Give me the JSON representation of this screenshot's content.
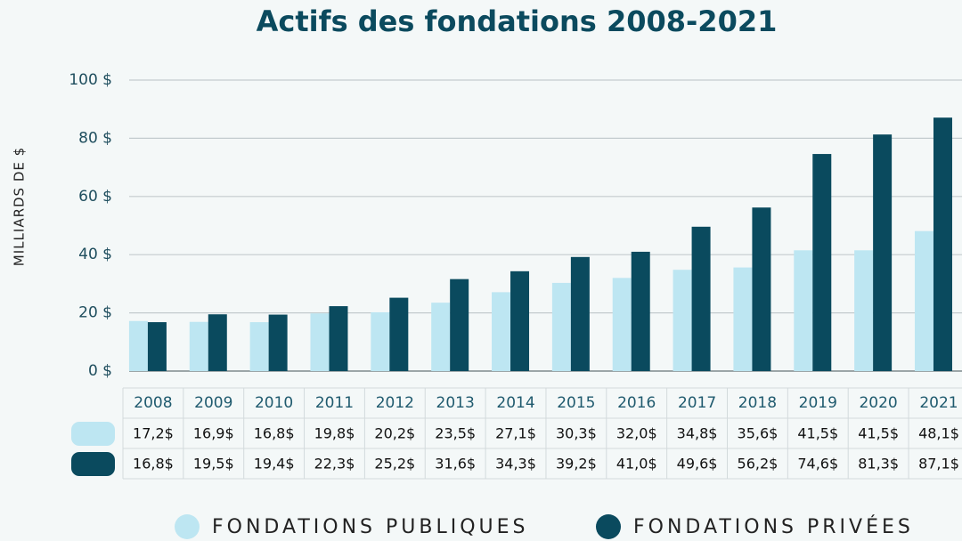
{
  "chart_data": {
    "type": "bar",
    "title": "Actifs des fondations 2008-2021",
    "y_label": "MILLIARDS DE $",
    "categories": [
      "2008",
      "2009",
      "2010",
      "2011",
      "2012",
      "2013",
      "2014",
      "2015",
      "2016",
      "2017",
      "2018",
      "2019",
      "2020",
      "2021"
    ],
    "series": [
      {
        "name": "FONDATIONS PUBLIQUES",
        "color": "#bde6f2",
        "values": [
          17.2,
          16.9,
          16.8,
          19.8,
          20.2,
          23.5,
          27.1,
          30.3,
          32.0,
          34.8,
          35.6,
          41.5,
          41.5,
          48.1
        ],
        "value_labels": [
          "17,2$",
          "16,9$",
          "16,8$",
          "19,8$",
          "20,2$",
          "23,5$",
          "27,1$",
          "30,3$",
          "32,0$",
          "34,8$",
          "35,6$",
          "41,5$",
          "41,5$",
          "48,1$"
        ]
      },
      {
        "name": "FONDATIONS PRIVÉES",
        "color": "#0a4a5e",
        "values": [
          16.8,
          19.5,
          19.4,
          22.3,
          25.2,
          31.6,
          34.3,
          39.2,
          41.0,
          49.6,
          56.2,
          74.6,
          81.3,
          87.1
        ],
        "value_labels": [
          "16,8$",
          "19,5$",
          "19,4$",
          "22,3$",
          "25,2$",
          "31,6$",
          "34,3$",
          "39,2$",
          "41,0$",
          "49,6$",
          "56,2$",
          "74,6$",
          "81,3$",
          "87,1$"
        ]
      }
    ],
    "ylim": [
      0,
      100
    ],
    "yticks": [
      {
        "value": 0,
        "label": "0 $"
      },
      {
        "value": 20,
        "label": "20 $"
      },
      {
        "value": 40,
        "label": "40 $"
      },
      {
        "value": 60,
        "label": "60 $"
      },
      {
        "value": 80,
        "label": "80 $"
      },
      {
        "value": 100,
        "label": "100 $"
      }
    ],
    "grid": true
  }
}
